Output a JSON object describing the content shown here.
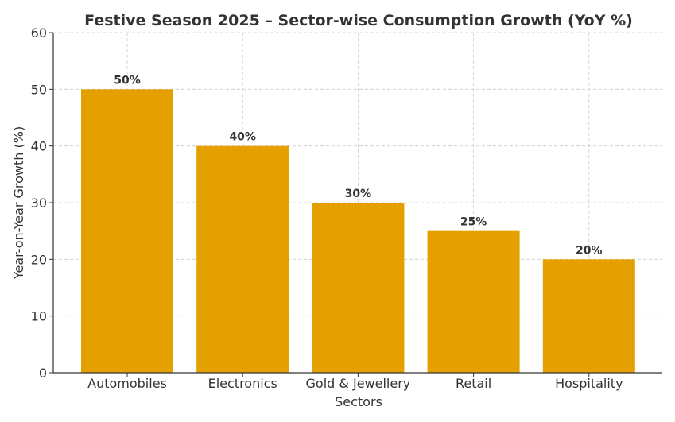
{
  "chart_data": {
    "type": "bar",
    "title": "Festive Season 2025 – Sector-wise Consumption Growth (YoY %)",
    "xlabel": "Sectors",
    "ylabel": "Year-on-Year Growth (%)",
    "categories": [
      "Automobiles",
      "Electronics",
      "Gold & Jewellery",
      "Retail",
      "Hospitality"
    ],
    "values": [
      50,
      40,
      30,
      25,
      20
    ],
    "data_labels": [
      "50%",
      "40%",
      "30%",
      "25%",
      "20%"
    ],
    "ylim": [
      0,
      60
    ],
    "yticks": [
      0,
      10,
      20,
      30,
      40,
      50,
      60
    ],
    "ytick_labels": [
      "0",
      "10",
      "20",
      "30",
      "40",
      "50",
      "60"
    ],
    "grid": true,
    "bar_color": "#E4A000",
    "grid_color": "#cccccc",
    "axis_color": "#333333"
  }
}
